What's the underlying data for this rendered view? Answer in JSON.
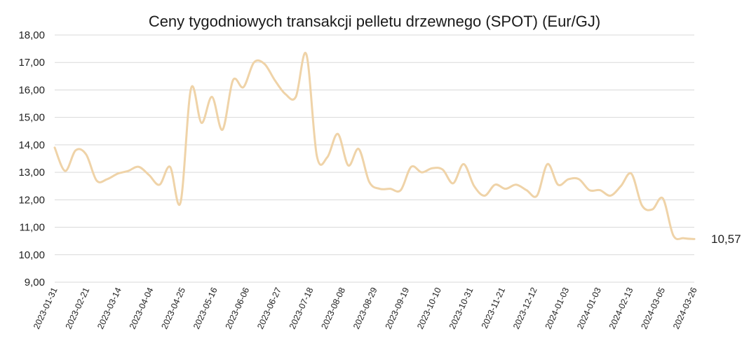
{
  "chart_data": {
    "type": "line",
    "title": "Ceny tygodniowych transakcji pelletu drzewnego (SPOT) (Eur/GJ)",
    "xlabel": "",
    "ylabel": "",
    "ylim": [
      9,
      18
    ],
    "yticks": [
      "9,00",
      "10,00",
      "11,00",
      "12,00",
      "13,00",
      "14,00",
      "15,00",
      "16,00",
      "17,00",
      "18,00"
    ],
    "xticks": [
      "2023-01-31",
      "2023-02-21",
      "2023-03-14",
      "2023-04-04",
      "2023-04-25",
      "2023-05-16",
      "2023-06-06",
      "2023-06-27",
      "2023-07-18",
      "2023-08-08",
      "2023-08-29",
      "2023-09-19",
      "2023-10-10",
      "2023-10-31",
      "2023-11-21",
      "2023-12-12",
      "2024-01-03",
      "2024-01-03",
      "2024-02-13",
      "2024-03-05",
      "2024-03-26"
    ],
    "grid": true,
    "legend": "none",
    "line_color": "#efd3a8",
    "end_label": "10,57",
    "series": [
      {
        "values": [
          13.9,
          13.05,
          13.8,
          13.65,
          12.7,
          12.75,
          12.95,
          13.05,
          13.2,
          12.9,
          12.55,
          13.2,
          11.9,
          16.05,
          14.8,
          15.75,
          14.55,
          16.35,
          16.1,
          17.0,
          16.95,
          16.35,
          15.85,
          15.75,
          17.3,
          13.6,
          13.55,
          14.4,
          13.25,
          13.85,
          12.65,
          12.4,
          12.4,
          12.35,
          13.2,
          13.0,
          13.15,
          13.1,
          12.6,
          13.3,
          12.5,
          12.15,
          12.55,
          12.4,
          12.55,
          12.35,
          12.15,
          13.3,
          12.55,
          12.75,
          12.75,
          12.35,
          12.35,
          12.15,
          12.5,
          12.95,
          11.8,
          11.65,
          12.05,
          10.7,
          10.6,
          10.57
        ]
      }
    ]
  }
}
